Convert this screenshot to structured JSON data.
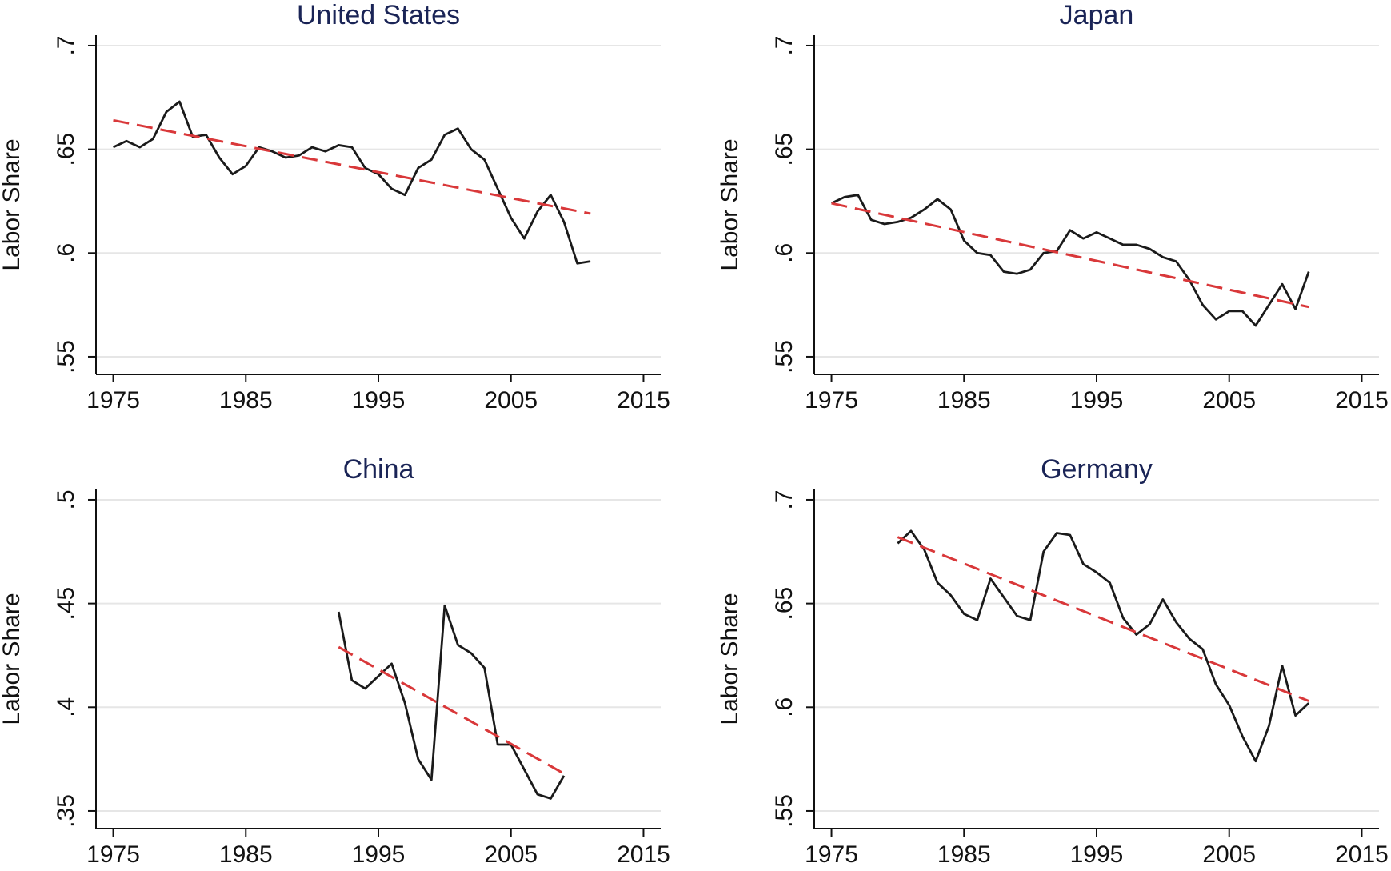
{
  "chart_data": [
    {
      "type": "line",
      "title": "United States",
      "y_label": "Labor Share",
      "xlim": [
        1973.7,
        2016.3
      ],
      "ylim": [
        0.5415,
        0.705
      ],
      "xticks": [
        1975,
        1985,
        1995,
        2005,
        2015
      ],
      "yticks": [
        {
          "value": 0.55,
          "label": ".55"
        },
        {
          "value": 0.6,
          "label": ".6"
        },
        {
          "value": 0.65,
          "label": ".65"
        },
        {
          "value": 0.7,
          "label": ".7"
        }
      ],
      "grid": true,
      "series": [
        {
          "color": "#1a1a1a",
          "dashed": false,
          "x": [
            1975,
            1976,
            1977,
            1978,
            1979,
            1980,
            1981,
            1982,
            1983,
            1984,
            1985,
            1986,
            1987,
            1988,
            1989,
            1990,
            1991,
            1992,
            1993,
            1994,
            1995,
            1996,
            1997,
            1998,
            1999,
            2000,
            2001,
            2002,
            2003,
            2004,
            2005,
            2006,
            2007,
            2008,
            2009,
            2010,
            2011
          ],
          "values": [
            0.651,
            0.654,
            0.651,
            0.655,
            0.668,
            0.673,
            0.656,
            0.657,
            0.646,
            0.638,
            0.642,
            0.651,
            0.649,
            0.646,
            0.647,
            0.651,
            0.649,
            0.652,
            0.651,
            0.641,
            0.638,
            0.631,
            0.628,
            0.641,
            0.645,
            0.657,
            0.66,
            0.65,
            0.645,
            0.631,
            0.617,
            0.607,
            0.62,
            0.628,
            0.615,
            0.595,
            0.596
          ]
        },
        {
          "color": "#d9383a",
          "dashed": true,
          "x": [
            1975,
            2011
          ],
          "values": [
            0.664,
            0.619
          ]
        }
      ]
    },
    {
      "type": "line",
      "title": "Japan",
      "y_label": "Labor Share",
      "xlim": [
        1973.7,
        2016.3
      ],
      "ylim": [
        0.5415,
        0.705
      ],
      "xticks": [
        1975,
        1985,
        1995,
        2005,
        2015
      ],
      "yticks": [
        {
          "value": 0.55,
          "label": ".55"
        },
        {
          "value": 0.6,
          "label": ".6"
        },
        {
          "value": 0.65,
          "label": ".65"
        },
        {
          "value": 0.7,
          "label": ".7"
        }
      ],
      "grid": true,
      "series": [
        {
          "color": "#1a1a1a",
          "dashed": false,
          "x": [
            1975,
            1976,
            1977,
            1978,
            1979,
            1980,
            1981,
            1982,
            1983,
            1984,
            1985,
            1986,
            1987,
            1988,
            1989,
            1990,
            1991,
            1992,
            1993,
            1994,
            1995,
            1996,
            1997,
            1998,
            1999,
            2000,
            2001,
            2002,
            2003,
            2004,
            2005,
            2006,
            2007,
            2008,
            2009,
            2010,
            2011
          ],
          "values": [
            0.624,
            0.627,
            0.628,
            0.616,
            0.614,
            0.615,
            0.617,
            0.621,
            0.626,
            0.621,
            0.606,
            0.6,
            0.599,
            0.591,
            0.59,
            0.592,
            0.6,
            0.601,
            0.611,
            0.607,
            0.61,
            0.607,
            0.604,
            0.604,
            0.602,
            0.598,
            0.596,
            0.587,
            0.575,
            0.568,
            0.572,
            0.572,
            0.565,
            0.575,
            0.585,
            0.573,
            0.591
          ]
        },
        {
          "color": "#d9383a",
          "dashed": true,
          "x": [
            1975,
            2011
          ],
          "values": [
            0.624,
            0.574
          ]
        }
      ]
    },
    {
      "type": "line",
      "title": "China",
      "y_label": "Labor Share",
      "xlim": [
        1973.7,
        2016.3
      ],
      "ylim": [
        0.3415,
        0.505
      ],
      "xticks": [
        1975,
        1985,
        1995,
        2005,
        2015
      ],
      "yticks": [
        {
          "value": 0.35,
          "label": ".35"
        },
        {
          "value": 0.4,
          "label": ".4"
        },
        {
          "value": 0.45,
          "label": ".45"
        },
        {
          "value": 0.5,
          "label": ".5"
        }
      ],
      "grid": true,
      "series": [
        {
          "color": "#1a1a1a",
          "dashed": false,
          "x": [
            1992,
            1993,
            1994,
            1995,
            1996,
            1997,
            1998,
            1999,
            2000,
            2001,
            2002,
            2003,
            2004,
            2005,
            2006,
            2007,
            2008,
            2009
          ],
          "values": [
            0.446,
            0.413,
            0.409,
            0.415,
            0.421,
            0.402,
            0.375,
            0.365,
            0.449,
            0.43,
            0.426,
            0.419,
            0.382,
            0.382,
            0.37,
            0.358,
            0.356,
            0.367
          ]
        },
        {
          "color": "#d9383a",
          "dashed": true,
          "x": [
            1992,
            2009
          ],
          "values": [
            0.429,
            0.368
          ]
        }
      ]
    },
    {
      "type": "line",
      "title": "Germany",
      "y_label": "Labor Share",
      "xlim": [
        1973.7,
        2016.3
      ],
      "ylim": [
        0.5415,
        0.705
      ],
      "xticks": [
        1975,
        1985,
        1995,
        2005,
        2015
      ],
      "yticks": [
        {
          "value": 0.55,
          "label": ".55"
        },
        {
          "value": 0.6,
          "label": ".6"
        },
        {
          "value": 0.65,
          "label": ".65"
        },
        {
          "value": 0.7,
          "label": ".7"
        }
      ],
      "grid": true,
      "series": [
        {
          "color": "#1a1a1a",
          "dashed": false,
          "x": [
            1980,
            1981,
            1982,
            1983,
            1984,
            1985,
            1986,
            1987,
            1988,
            1989,
            1990,
            1991,
            1992,
            1993,
            1994,
            1995,
            1996,
            1997,
            1998,
            1999,
            2000,
            2001,
            2002,
            2003,
            2004,
            2005,
            2006,
            2007,
            2008,
            2009,
            2010,
            2011
          ],
          "values": [
            0.679,
            0.685,
            0.676,
            0.66,
            0.654,
            0.645,
            0.642,
            0.662,
            0.653,
            0.644,
            0.642,
            0.675,
            0.684,
            0.683,
            0.669,
            0.665,
            0.66,
            0.643,
            0.635,
            0.64,
            0.652,
            0.641,
            0.633,
            0.628,
            0.611,
            0.601,
            0.586,
            0.574,
            0.591,
            0.62,
            0.596,
            0.602
          ]
        },
        {
          "color": "#d9383a",
          "dashed": true,
          "x": [
            1980,
            2011
          ],
          "values": [
            0.682,
            0.603
          ]
        }
      ]
    }
  ]
}
